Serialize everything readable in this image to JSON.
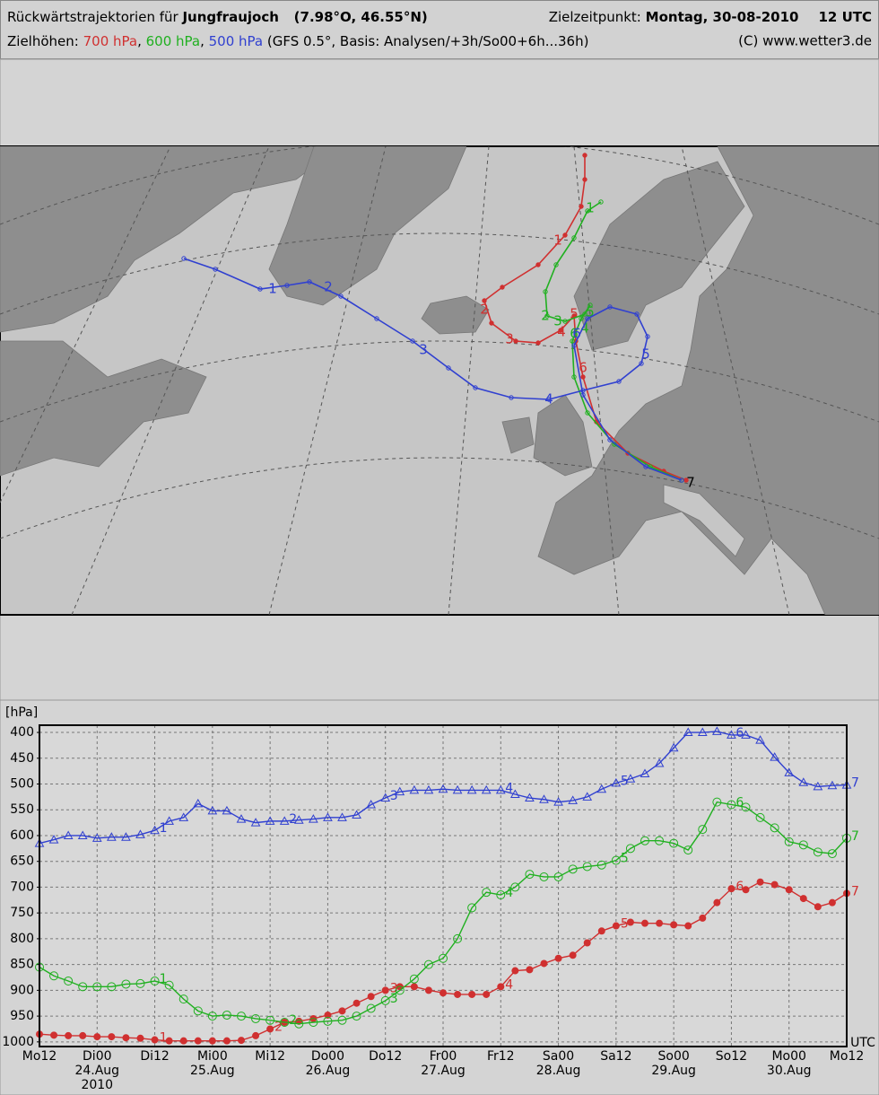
{
  "header": {
    "line1": {
      "prefix": "Rückwärtstrajektorien für",
      "station": "Jungfraujoch",
      "coords": "(7.98°O, 46.55°N)",
      "target_label": "Zielzeitpunkt:",
      "target_date": "Montag, 30-08-2010",
      "target_time": "12 UTC"
    },
    "line2": {
      "prefix": "Zielhöhen:",
      "basis": "(GFS 0.5°, Basis: Analysen/+3h/So00+6h...36h)",
      "credit": "(C) www.wetter3.de"
    }
  },
  "map": {
    "trajectories": [
      {
        "color": "#d03030",
        "labels": [
          "1",
          "2",
          "3",
          "4",
          "5",
          "6"
        ]
      },
      {
        "color": "#20b020",
        "labels": [
          "1",
          "2",
          "3",
          "4",
          "5",
          "6"
        ]
      },
      {
        "color": "#3040d0",
        "labels": [
          "1",
          "2",
          "3",
          "4",
          "5",
          "6"
        ]
      }
    ],
    "end_label": "7"
  },
  "chart_data": {
    "type": "line",
    "y_label": "[hPa]",
    "x_unit": "UTC",
    "categories": [
      "Mo12",
      null,
      null,
      null,
      "Di00",
      null,
      null,
      null,
      "Di12",
      null,
      null,
      null,
      "Mi00",
      null,
      null,
      null,
      "Mi12",
      null,
      null,
      null,
      "Do00",
      null,
      null,
      null,
      "Do12",
      null,
      null,
      null,
      "Fr00",
      null,
      null,
      null,
      "Fr12",
      null,
      null,
      null,
      "Sa00",
      null,
      null,
      null,
      "Sa12",
      null,
      null,
      null,
      "So00",
      null,
      null,
      null,
      "So12",
      null,
      null,
      null,
      "Mo00",
      null,
      null,
      null,
      "Mo12"
    ],
    "x_sublabels": [
      null,
      null,
      null,
      null,
      "24.Aug",
      null,
      null,
      null,
      null,
      null,
      null,
      null,
      "25.Aug",
      null,
      null,
      null,
      null,
      null,
      null,
      null,
      "26.Aug",
      null,
      null,
      null,
      null,
      null,
      null,
      null,
      "27.Aug",
      null,
      null,
      null,
      null,
      null,
      null,
      null,
      "28.Aug",
      null,
      null,
      null,
      null,
      null,
      null,
      null,
      "29.Aug",
      null,
      null,
      null,
      null,
      null,
      null,
      null,
      "30.Aug",
      null,
      null,
      null,
      null
    ],
    "x_year": "2010",
    "ylim": [
      1009,
      386
    ],
    "yticks": [
      400,
      450,
      500,
      550,
      600,
      650,
      700,
      750,
      800,
      850,
      900,
      950,
      1000
    ],
    "grid": true,
    "series": [
      {
        "name": "700 hPa",
        "color": "#d03030",
        "marker": "filled-circle",
        "values": [
          985,
          987,
          988,
          988,
          990,
          990,
          992,
          993,
          996,
          998,
          998,
          998,
          998,
          998,
          997,
          988,
          975,
          962,
          960,
          955,
          948,
          940,
          925,
          912,
          900,
          893,
          893,
          900,
          905,
          908,
          908,
          908,
          893,
          862,
          860,
          848,
          838,
          832,
          808,
          785,
          775,
          768,
          770,
          770,
          773,
          775,
          760,
          730,
          703,
          705,
          690,
          695,
          705,
          722,
          738,
          730,
          712
        ],
        "marker_labels": [
          null,
          null,
          null,
          null,
          null,
          null,
          null,
          null,
          "1",
          null,
          null,
          null,
          null,
          null,
          null,
          null,
          "2",
          null,
          null,
          null,
          null,
          null,
          null,
          null,
          "3",
          null,
          null,
          null,
          null,
          null,
          null,
          null,
          "4",
          null,
          null,
          null,
          null,
          null,
          null,
          null,
          "5",
          null,
          null,
          null,
          null,
          null,
          null,
          null,
          "6",
          null,
          null,
          null,
          null,
          null,
          null,
          null,
          "7"
        ]
      },
      {
        "name": "600 hPa",
        "color": "#20b020",
        "marker": "open-circle",
        "values": [
          855,
          872,
          882,
          893,
          893,
          893,
          888,
          887,
          882,
          890,
          917,
          940,
          950,
          948,
          950,
          955,
          958,
          962,
          965,
          962,
          960,
          958,
          950,
          935,
          920,
          900,
          878,
          850,
          838,
          800,
          740,
          710,
          715,
          700,
          675,
          680,
          680,
          665,
          660,
          657,
          648,
          625,
          610,
          610,
          615,
          628,
          588,
          535,
          540,
          545,
          565,
          585,
          612,
          618,
          632,
          635,
          605
        ],
        "marker_labels": [
          null,
          null,
          null,
          null,
          null,
          null,
          null,
          null,
          "1",
          null,
          null,
          null,
          null,
          null,
          null,
          null,
          null,
          "2",
          null,
          null,
          null,
          null,
          null,
          null,
          "3",
          null,
          null,
          null,
          null,
          null,
          null,
          null,
          "4",
          null,
          null,
          null,
          null,
          null,
          null,
          null,
          "5",
          null,
          null,
          null,
          null,
          null,
          null,
          null,
          "6",
          null,
          null,
          null,
          null,
          null,
          null,
          null,
          "7"
        ]
      },
      {
        "name": "500 hPa",
        "color": "#3040d0",
        "marker": "open-triangle",
        "values": [
          615,
          608,
          600,
          600,
          605,
          603,
          603,
          598,
          590,
          572,
          565,
          538,
          552,
          552,
          568,
          575,
          572,
          572,
          570,
          568,
          565,
          565,
          560,
          540,
          527,
          515,
          512,
          512,
          510,
          512,
          512,
          512,
          512,
          520,
          527,
          530,
          535,
          532,
          525,
          510,
          498,
          490,
          480,
          460,
          430,
          400,
          400,
          398,
          405,
          405,
          415,
          448,
          478,
          497,
          505,
          503,
          502
        ],
        "marker_labels": [
          null,
          null,
          null,
          null,
          null,
          null,
          null,
          null,
          "1",
          null,
          null,
          null,
          null,
          null,
          null,
          null,
          null,
          "2",
          null,
          null,
          null,
          null,
          null,
          null,
          "3",
          null,
          null,
          null,
          null,
          null,
          null,
          null,
          "4",
          null,
          null,
          null,
          null,
          null,
          null,
          null,
          "5",
          null,
          null,
          null,
          null,
          null,
          null,
          null,
          "6",
          null,
          null,
          null,
          null,
          null,
          null,
          null,
          "7"
        ]
      }
    ]
  }
}
